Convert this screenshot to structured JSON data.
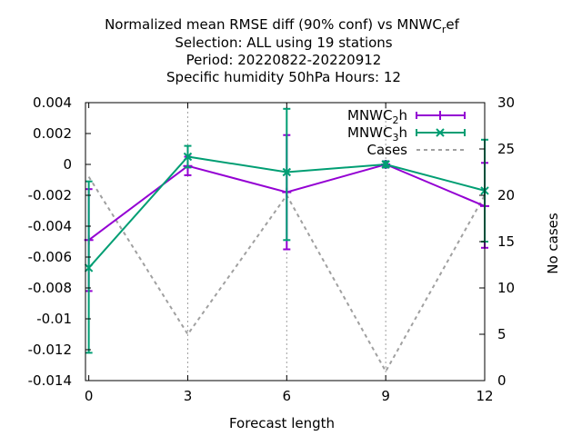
{
  "chart_data": {
    "type": "line",
    "title_lines": [
      "Normalized mean RMSE diff (90% conf) vs MNWC_ref",
      "Selection: ALL using    19 stations",
      "Period: 20220822-20220912",
      "Specific humidity 50hPa   Hours:  12"
    ],
    "xlabel": "Forecast length",
    "ylabel": "",
    "y2label": "No cases",
    "x": [
      0,
      3,
      6,
      9,
      12
    ],
    "xticks": [
      "0",
      "3",
      "6",
      "9",
      "12"
    ],
    "xlim": [
      -0.1,
      12
    ],
    "ylim": [
      -0.014,
      0.004
    ],
    "yticks": [
      "0.004",
      "0.002",
      "0",
      "-0.002",
      "-0.004",
      "-0.006",
      "-0.008",
      "-0.01",
      "-0.012",
      "-0.014"
    ],
    "y2lim": [
      0,
      30
    ],
    "y2ticks": [
      "30",
      "25",
      "20",
      "15",
      "10",
      "5",
      "0"
    ],
    "grid": true,
    "legend_position": "top-right",
    "series": [
      {
        "name": "MNWC_2h",
        "name_base": "MNWC",
        "name_sub": "2",
        "name_tail": "h",
        "color": "#9400d3",
        "marker": "plus",
        "axis": "y",
        "values": [
          -0.0049,
          -0.0001,
          -0.0018,
          0.0,
          -0.0027
        ],
        "err_low": [
          -0.0082,
          -0.0007,
          -0.0055,
          -0.0002,
          -0.0054
        ],
        "err_high": [
          -0.0016,
          0.0005,
          0.0019,
          0.0002,
          0.0001
        ]
      },
      {
        "name": "MNWC_3h",
        "name_base": "MNWC",
        "name_sub": "3",
        "name_tail": "h",
        "color": "#009e73",
        "marker": "cross",
        "axis": "y",
        "values": [
          -0.0067,
          0.0005,
          -0.0005,
          0.0,
          -0.0017
        ],
        "err_low": [
          -0.0122,
          -0.0002,
          -0.0049,
          -0.0002,
          -0.005
        ],
        "err_high": [
          -0.0011,
          0.0012,
          0.0036,
          0.0002,
          0.0016
        ]
      },
      {
        "name": "Cases",
        "color": "#a0a0a0",
        "dashed": true,
        "axis": "y2",
        "values": [
          22,
          5,
          20,
          1,
          20
        ]
      }
    ]
  }
}
